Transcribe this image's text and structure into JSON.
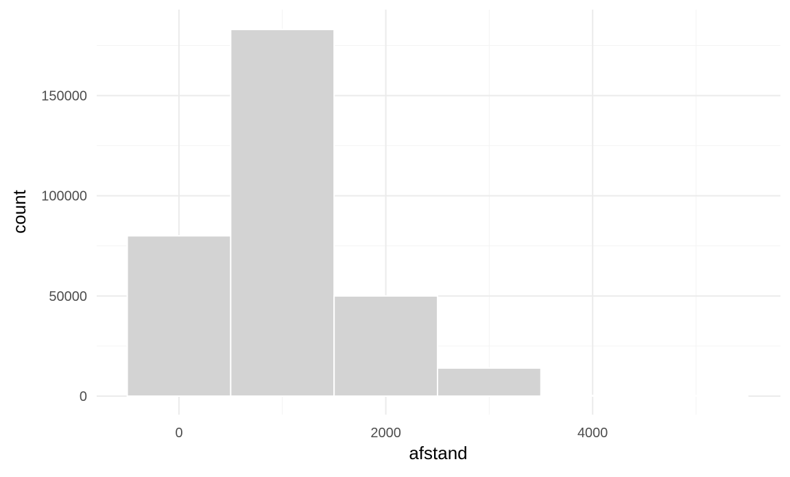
{
  "chart_data": {
    "type": "bar",
    "subtype": "histogram",
    "title": "",
    "xlabel": "afstand",
    "ylabel": "count",
    "bin_width": 1000,
    "bins": [
      {
        "x_start": -500,
        "x_end": 500,
        "count": 80000
      },
      {
        "x_start": 500,
        "x_end": 1500,
        "count": 183000
      },
      {
        "x_start": 1500,
        "x_end": 2500,
        "count": 50000
      },
      {
        "x_start": 2500,
        "x_end": 3500,
        "count": 14000
      },
      {
        "x_start": 3500,
        "x_end": 4500,
        "count": 0
      },
      {
        "x_start": 4500,
        "x_end": 5500,
        "count": 0
      }
    ],
    "xlim": [
      -900,
      5800
    ],
    "ylim": [
      0,
      193000
    ],
    "x_ticks": [
      0,
      2000,
      4000
    ],
    "x_tick_labels": [
      "0",
      "2000",
      "4000"
    ],
    "x_minor_ticks": [
      1000,
      3000,
      5000
    ],
    "y_ticks": [
      0,
      50000,
      100000,
      150000
    ],
    "y_tick_labels": [
      "0",
      "50000",
      "100000",
      "150000"
    ],
    "y_minor_ticks": [
      25000,
      75000,
      125000,
      175000
    ],
    "grid": true,
    "legend": "none",
    "colors": {
      "bar_fill": "#d3d3d3",
      "bar_outline": "#ffffff",
      "grid_major": "#ebebeb",
      "grid_minor": "#f3f3f3",
      "tick_text": "#4d4d4d",
      "axis_title": "#000000",
      "background": "#ffffff"
    }
  }
}
